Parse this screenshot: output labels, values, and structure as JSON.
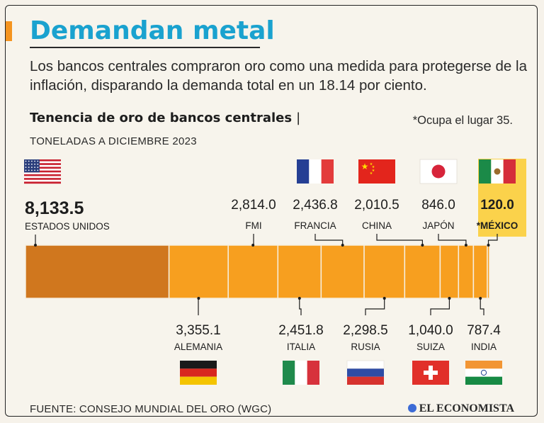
{
  "header": {
    "title": "Demandan metal",
    "subtitle": "Los bancos centrales compraron oro como una medida para protegerse de la inflación, disparando la demanda total en un 18.14 por ciento."
  },
  "colors": {
    "accent": "#f5941f",
    "title_blue": "#1aa2cf",
    "bar_main": "#f79f1f",
    "bar_leader": "#d0771e",
    "bar_divider": "#f6efe0",
    "highlight": "#fbd24b",
    "connector": "#1d1d1d",
    "text": "#1d1d1d"
  },
  "chart_data": {
    "type": "bar",
    "orientation": "horizontal-stacked-treemap",
    "title": "Tenencia de oro de bancos centrales",
    "subtitle": "TONELADAS A DICIEMBRE 2023",
    "note": "*Ocupa el lugar 35.",
    "unit": "toneladas",
    "series": [
      {
        "name": "ESTADOS UNIDOS",
        "value": 8133.5,
        "label": "8,133.5",
        "flag": "us-flag",
        "row": "top"
      },
      {
        "name": "ALEMANIA",
        "value": 3355.1,
        "label": "3,355.1",
        "flag": "germany-flag",
        "row": "bottom"
      },
      {
        "name": "FMI",
        "value": 2814.0,
        "label": "2,814.0",
        "flag": "",
        "row": "top"
      },
      {
        "name": "ITALIA",
        "value": 2451.8,
        "label": "2,451.8",
        "flag": "italy-flag",
        "row": "bottom"
      },
      {
        "name": "FRANCIA",
        "value": 2436.8,
        "label": "2,436.8",
        "flag": "france-flag",
        "row": "top"
      },
      {
        "name": "RUSIA",
        "value": 2298.5,
        "label": "2,298.5",
        "flag": "russia-flag",
        "row": "bottom"
      },
      {
        "name": "CHINA",
        "value": 2010.5,
        "label": "2,010.5",
        "flag": "china-flag",
        "row": "top"
      },
      {
        "name": "SUIZA",
        "value": 1040.0,
        "label": "1,040.0",
        "flag": "switzerland-flag",
        "row": "bottom"
      },
      {
        "name": "JAPÓN",
        "value": 846.0,
        "label": "846.0",
        "flag": "japan-flag",
        "row": "top"
      },
      {
        "name": "INDIA",
        "value": 787.4,
        "label": "787.4",
        "flag": "india-flag",
        "row": "bottom"
      },
      {
        "name": "*MÉXICO",
        "value": 120.0,
        "label": "120.0",
        "flag": "mexico-flag",
        "row": "top",
        "highlight": true
      }
    ]
  },
  "footer": {
    "source": "FUENTE: CONSEJO MUNDIAL DEL ORO (WGC)",
    "brand": "EL ECONOMISTA"
  }
}
